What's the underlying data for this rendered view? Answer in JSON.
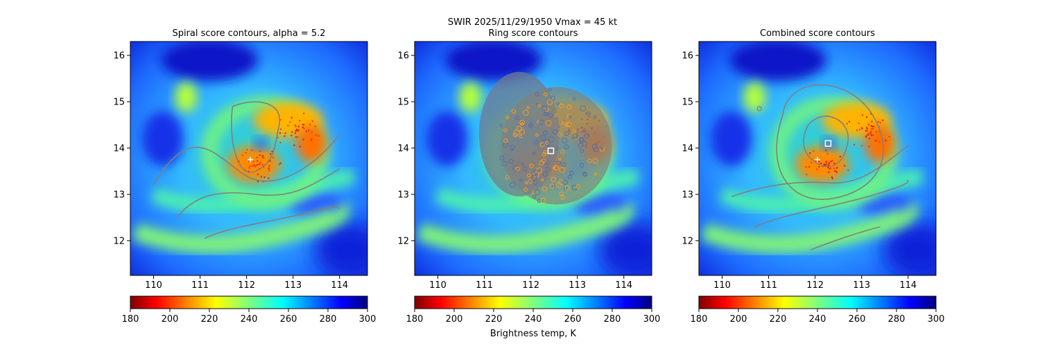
{
  "figure": {
    "suptitle_line1": "SWIR  2025/11/29/1950    Vmax = 45 kt",
    "colorbar_label": "Brightness temp, K"
  },
  "chart_data": [
    {
      "type": "heatmap",
      "title": "Spiral score contours, alpha =  5.2",
      "xlabel": "",
      "ylabel": "",
      "xlim": [
        109.5,
        114.6
      ],
      "ylim": [
        11.25,
        16.3
      ],
      "xticks": [
        110,
        111,
        112,
        113,
        114
      ],
      "yticks": [
        12,
        13,
        14,
        15,
        16
      ],
      "colorbar": {
        "label": "",
        "range": [
          180,
          300
        ],
        "ticks": [
          180,
          200,
          220,
          240,
          260,
          280,
          300
        ],
        "colormap": "jet_r"
      },
      "center_marker": {
        "type": "plus",
        "lon": 112.08,
        "lat": 13.75
      }
    },
    {
      "type": "heatmap",
      "title": "Ring score contours",
      "xlabel": "",
      "ylabel": "",
      "xlim": [
        109.5,
        114.6
      ],
      "ylim": [
        11.25,
        16.3
      ],
      "xticks": [
        110,
        111,
        112,
        113,
        114
      ],
      "yticks": [
        12,
        13,
        14,
        15,
        16
      ],
      "colorbar": {
        "label": "Brightness temp, K",
        "range": [
          180,
          300
        ],
        "ticks": [
          180,
          200,
          220,
          240,
          260,
          280,
          300
        ],
        "colormap": "jet_r"
      },
      "center_marker": {
        "type": "square",
        "lon": 112.43,
        "lat": 13.94
      }
    },
    {
      "type": "heatmap",
      "title": "Combined score contours",
      "xlabel": "",
      "ylabel": "",
      "xlim": [
        109.5,
        114.6
      ],
      "ylim": [
        11.25,
        16.3
      ],
      "xticks": [
        110,
        111,
        112,
        113,
        114
      ],
      "yticks": [
        12,
        13,
        14,
        15,
        16
      ],
      "colorbar": {
        "label": "",
        "range": [
          180,
          300
        ],
        "ticks": [
          180,
          200,
          220,
          240,
          260,
          280,
          300
        ],
        "colormap": "jet_r"
      },
      "center_marker": {
        "type": "square",
        "lon": 112.28,
        "lat": 14.1
      },
      "secondary_marker": {
        "type": "plus",
        "lon": 112.05,
        "lat": 13.75
      }
    }
  ]
}
